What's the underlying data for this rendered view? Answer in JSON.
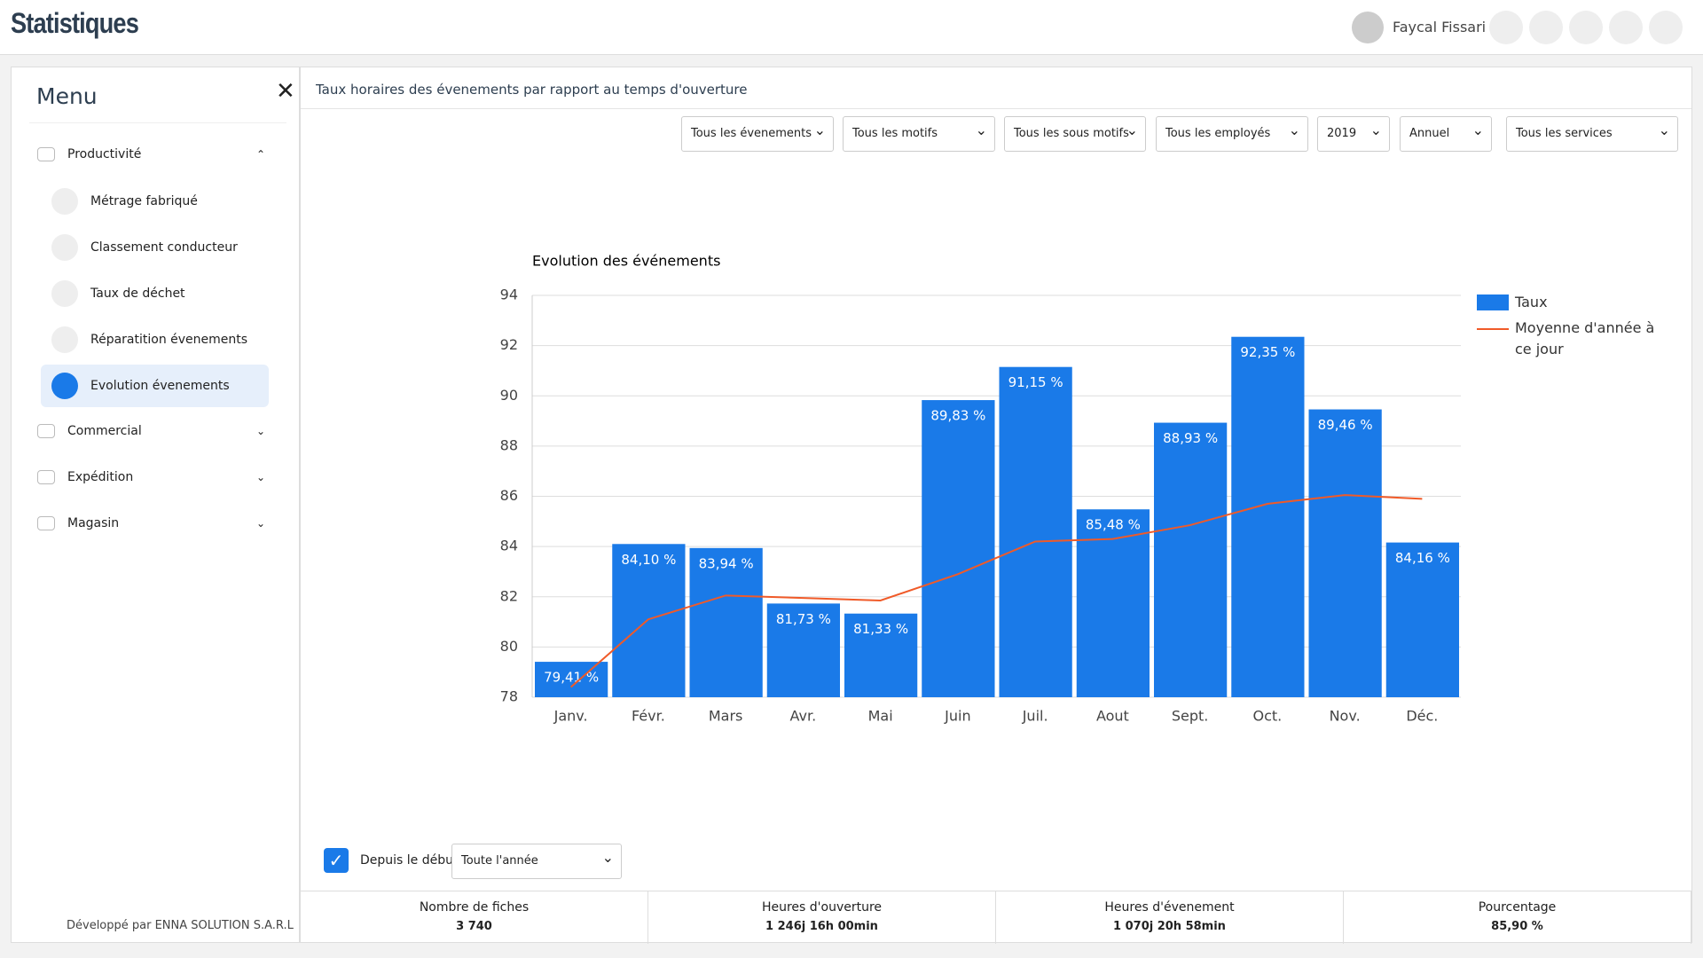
{
  "header": {
    "title": "Statistiques",
    "user": "Faycal Fissari"
  },
  "menu": {
    "title": "Menu",
    "sections": [
      {
        "label": "Productivité",
        "items": [
          "Métrage fabriqué",
          "Classement conducteur",
          "Taux de déchet",
          "Réparatition évenements",
          "Evolution évenements"
        ]
      },
      {
        "label": "Commercial"
      },
      {
        "label": "Expédition"
      },
      {
        "label": "Magasin"
      }
    ],
    "footer": "Développé par ENNA SOLUTION S.A.R.L"
  },
  "panel": {
    "title": "Taux horaires des évenements par rapport au temps d'ouverture",
    "filters": [
      "Tous les évenements",
      "Tous les motifs",
      "Tous les sous motifs",
      "Tous les employés",
      "2019",
      "Annuel",
      "Tous les services"
    ]
  },
  "chart_data": {
    "type": "bar",
    "title": "Evolution des événements",
    "categories": [
      "Janv.",
      "Févr.",
      "Mars",
      "Avr.",
      "Mai",
      "Juin",
      "Juil.",
      "Aout",
      "Sept.",
      "Oct.",
      "Nov.",
      "Déc."
    ],
    "series": [
      {
        "name": "Taux",
        "color": "#1a7ae8",
        "values": [
          79.41,
          84.1,
          83.94,
          81.73,
          81.33,
          89.83,
          91.15,
          85.48,
          88.93,
          92.35,
          89.46,
          84.16
        ],
        "value_labels": [
          "79,41 %",
          "84,10 %",
          "83,94 %",
          "81,73 %",
          "81,33 %",
          "89,83 %",
          "91,15 %",
          "85,48 %",
          "88,93 %",
          "92,35 %",
          "89,46 %",
          "84,16 %"
        ]
      },
      {
        "name": "Moyenne d'année à ce jour",
        "type": "line",
        "color": "#f05a28",
        "values": [
          78.4,
          81.1,
          82.05,
          81.95,
          81.85,
          82.9,
          84.2,
          84.3,
          84.85,
          85.7,
          86.05,
          85.9
        ]
      }
    ],
    "ylim": [
      78,
      94
    ],
    "yticks": [
      78,
      80,
      82,
      84,
      86,
      88,
      90,
      92,
      94
    ],
    "grid": true,
    "legend": "right"
  },
  "options": {
    "checkbox_label": "Depuis le début",
    "period": "Toute l'année"
  },
  "stats": [
    {
      "label": "Nombre de fiches",
      "value": "3 740"
    },
    {
      "label": "Heures d'ouverture",
      "value": "1 246j 16h 00min"
    },
    {
      "label": "Heures d'évenement",
      "value": "1 070j 20h 58min"
    },
    {
      "label": "Pourcentage",
      "value": "85,90 %"
    }
  ]
}
